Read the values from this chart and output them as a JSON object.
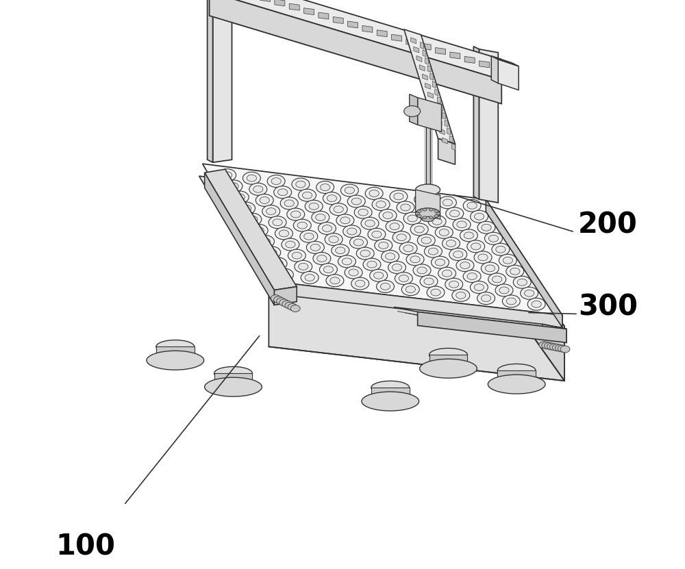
{
  "bg_color": "#ffffff",
  "line_color": "#333333",
  "label_100": "100",
  "label_200": "200",
  "label_300": "300",
  "fig_width": 10.0,
  "fig_height": 8.31,
  "dpi": 100,
  "colors": {
    "top_light": "#f2f2f2",
    "top_mid": "#e8e8e8",
    "side_light": "#e0e0e0",
    "side_mid": "#d4d4d4",
    "side_dark": "#c8c8c8",
    "rail_top": "#dcdcdc",
    "rail_side": "#cccccc",
    "gantry_top": "#ebebeb",
    "gantry_front": "#d8d8d8",
    "post_face": "#e5e5e5",
    "post_side": "#d0d0d0",
    "foot_top": "#e0e0e0",
    "foot_side": "#cccccc",
    "foot_base": "#d8d8d8",
    "wheel": "#e8e8e8",
    "hole": "#f0f0f0",
    "dispenser": "#d8d8d8"
  }
}
